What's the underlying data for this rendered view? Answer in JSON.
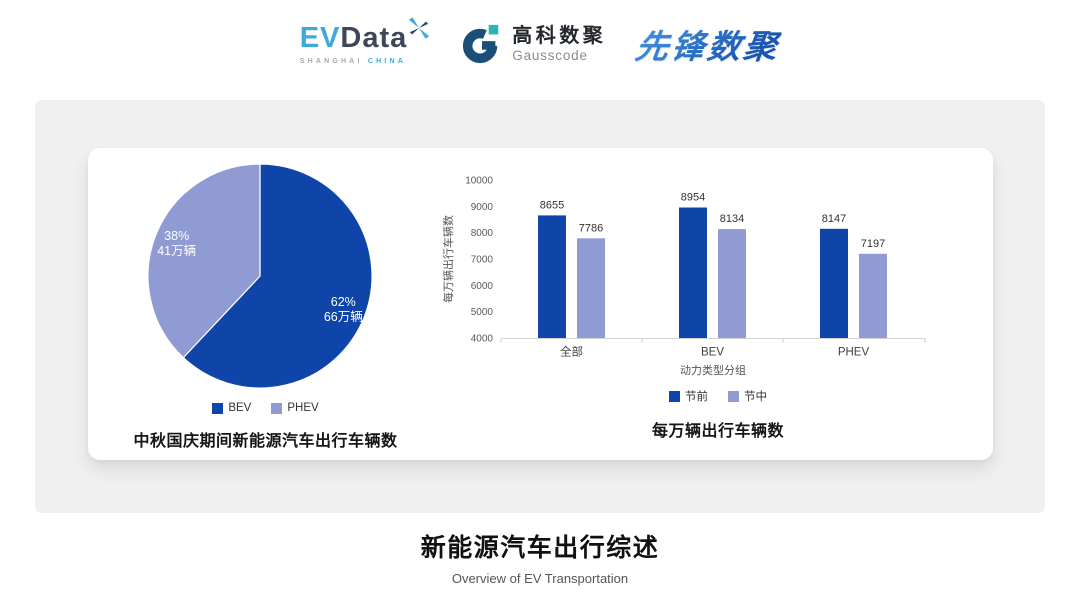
{
  "colors": {
    "primary_dark": "#0f45a8",
    "primary_light": "#8f9bd2",
    "panel_bg": "#f0f0f0",
    "card_bg": "#ffffff",
    "evdata_blue": "#3fa9dc",
    "evdata_dark": "#3d4757",
    "gausscode_navy": "#1b4f79",
    "gausscode_teal": "#2fb3b6",
    "pioneer_blue_1": "#3f8edc",
    "pioneer_blue_2": "#1b55b0"
  },
  "header": {
    "evdata": {
      "ev": "EV",
      "data": "Data",
      "sub_left": "SHANGHAI",
      "sub_right": "CHINA"
    },
    "gausscode": {
      "name_cn": "高科数聚",
      "name_en": "Gausscode"
    },
    "pioneer": {
      "name_cn": "先锋数聚"
    }
  },
  "footer": {
    "title": "新能源汽车出行综述",
    "subtitle": "Overview of EV Transportation"
  },
  "chart_data": [
    {
      "type": "pie",
      "title": "中秋国庆期间新能源汽车出行车辆数",
      "legend_position": "bottom",
      "slices": [
        {
          "label": "BEV",
          "percent": 62,
          "amount_label": "66万辆",
          "color": "#0f45a8"
        },
        {
          "label": "PHEV",
          "percent": 38,
          "amount_label": "41万辆",
          "color": "#8f9bd2"
        }
      ]
    },
    {
      "type": "bar",
      "title": "每万辆出行车辆数",
      "categories": [
        "全部",
        "BEV",
        "PHEV"
      ],
      "series": [
        {
          "name": "节前",
          "values": [
            8655,
            8954,
            8147
          ],
          "color": "#0f45a8"
        },
        {
          "name": "节中",
          "values": [
            7786,
            8134,
            7197
          ],
          "color": "#8f9bd2"
        }
      ],
      "xlabel": "动力类型分组",
      "ylabel": "每万辆出行车辆数",
      "ylim": [
        4000,
        10000
      ],
      "ytick_step": 1000,
      "grid": false,
      "legend_position": "bottom"
    }
  ]
}
